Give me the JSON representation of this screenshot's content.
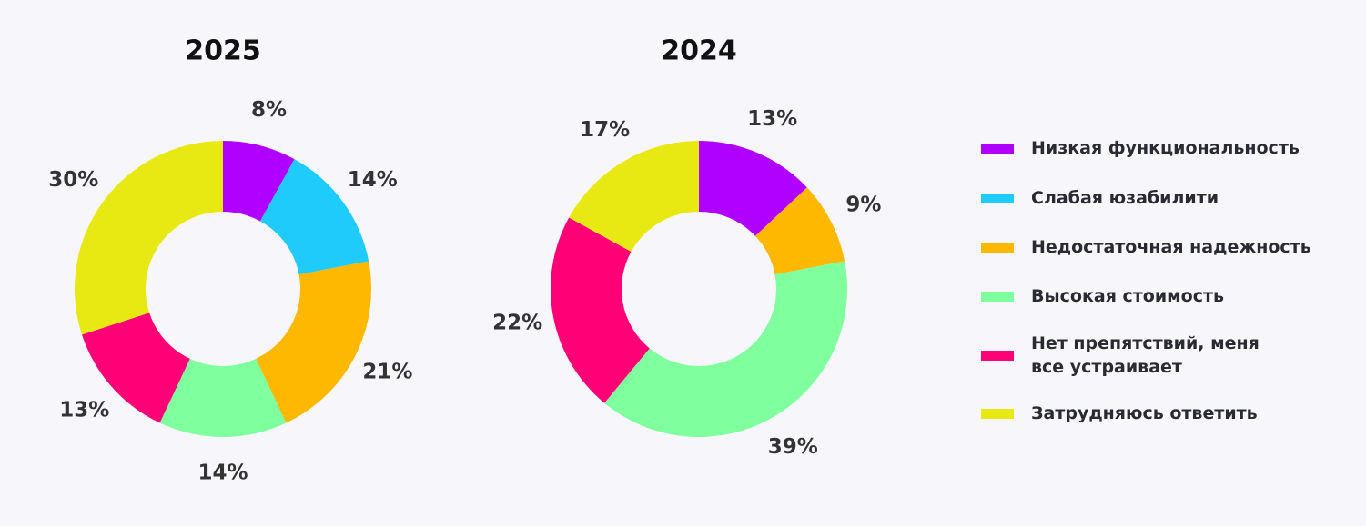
{
  "chart_data": [
    {
      "type": "pie",
      "title": "2025",
      "categories": [
        "Низкая функциональность",
        "Слабая юзабилити",
        "Недостаточная надежность",
        "Высокая стоимость",
        "Нет препятствий, меня все устраивает",
        "Затрудняюсь ответить"
      ],
      "colors": [
        "#b000ff",
        "#1ecbfa",
        "#ffb800",
        "#80ff9f",
        "#ff0077",
        "#e8e813"
      ],
      "values": [
        8,
        14,
        21,
        14,
        13,
        30
      ],
      "value_labels": [
        "8%",
        "14%",
        "21%",
        "14%",
        "13%",
        "30%"
      ]
    },
    {
      "type": "pie",
      "title": "2024",
      "values": [
        13,
        null,
        9,
        39,
        22,
        17
      ],
      "value_labels": [
        "13%",
        null,
        "9%",
        "39%",
        "22%",
        "17%"
      ]
    }
  ]
}
